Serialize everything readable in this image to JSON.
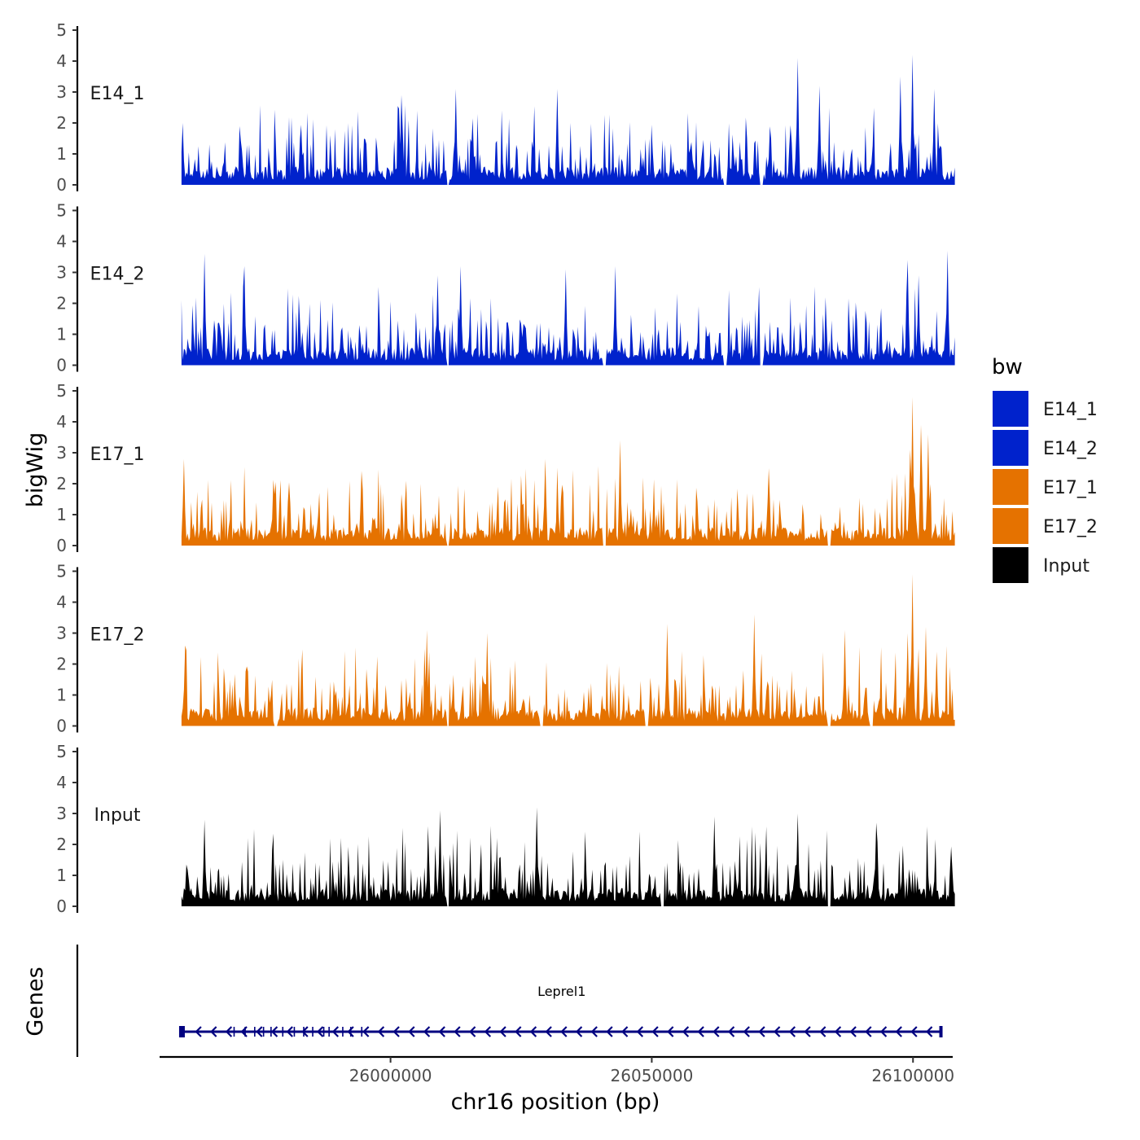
{
  "chart_data": {
    "type": "area",
    "ylabel": "bigWig",
    "xlabel": "chr16 position (bp)",
    "gene_panel_label": "Genes",
    "xlim": [
      25955800,
      26107600
    ],
    "data_range": [
      25960000,
      26108000
    ],
    "x_ticks": [
      26000000,
      26050000,
      26100000
    ],
    "x_tick_labels": [
      "26000000",
      "26050000",
      "26100000"
    ],
    "ylim": [
      0,
      5
    ],
    "y_ticks": [
      0,
      1,
      2,
      3,
      4,
      5
    ],
    "y_tick_labels": [
      "0",
      "1",
      "2",
      "3",
      "4",
      "5"
    ],
    "series": [
      {
        "name": "E14_1",
        "label": "E14_1",
        "color": "#0022cc",
        "peaks": [
          [
            25960200,
            2.0
          ],
          [
            26002000,
            2.9
          ],
          [
            26012500,
            3.1
          ],
          [
            26032000,
            3.1
          ],
          [
            26078000,
            4.1
          ],
          [
            26082000,
            3.2
          ],
          [
            26097500,
            3.5
          ],
          [
            26100000,
            4.2
          ],
          [
            26104000,
            3.1
          ]
        ],
        "gaps": [
          26011000,
          26071000,
          26064000
        ]
      },
      {
        "name": "E14_2",
        "label": "E14_2",
        "color": "#0022cc",
        "peaks": [
          [
            25964500,
            3.6
          ],
          [
            25972000,
            3.2
          ],
          [
            26009000,
            2.9
          ],
          [
            26013500,
            3.2
          ],
          [
            26033500,
            3.1
          ],
          [
            26043000,
            3.2
          ],
          [
            26099000,
            3.4
          ],
          [
            26101000,
            2.9
          ],
          [
            26106500,
            3.7
          ]
        ],
        "gaps": [
          26011000,
          26041000,
          26064000,
          26071000
        ]
      },
      {
        "name": "E17_1",
        "label": "E17_1",
        "color": "#e57200",
        "peaks": [
          [
            25960500,
            2.8
          ],
          [
            26029500,
            2.8
          ],
          [
            26044000,
            3.4
          ],
          [
            26072500,
            2.5
          ],
          [
            26099500,
            3.1
          ],
          [
            26100000,
            4.8
          ],
          [
            26101500,
            3.9
          ],
          [
            26103000,
            3.6
          ]
        ],
        "gaps": [
          26011000,
          26041000,
          26084000
        ]
      },
      {
        "name": "E17_2",
        "label": "E17_2",
        "color": "#e57200",
        "peaks": [
          [
            25960800,
            2.6
          ],
          [
            26007000,
            3.1
          ],
          [
            26018500,
            3.0
          ],
          [
            26053000,
            3.3
          ],
          [
            26069500,
            3.6
          ],
          [
            26087000,
            3.1
          ],
          [
            26099000,
            3.0
          ],
          [
            26100000,
            4.9
          ],
          [
            26102500,
            3.2
          ],
          [
            26104500,
            2.4
          ]
        ],
        "gaps": [
          25978000,
          26011000,
          26029000,
          26049000,
          26084000,
          26092000
        ]
      },
      {
        "name": "Input",
        "label": "Input",
        "color": "#000000",
        "peaks": [
          [
            25964300,
            2.8
          ],
          [
            26009500,
            3.1
          ],
          [
            26028000,
            3.2
          ],
          [
            26062000,
            2.9
          ],
          [
            26078000,
            3.0
          ],
          [
            26093000,
            2.7
          ]
        ],
        "gaps": [
          26011000,
          26052000,
          26084000
        ]
      }
    ],
    "legend": {
      "title": "bw",
      "entries": [
        {
          "label": "E14_1",
          "color": "#0022cc"
        },
        {
          "label": "E14_2",
          "color": "#0022cc"
        },
        {
          "label": "E17_1",
          "color": "#e57200"
        },
        {
          "label": "E17_2",
          "color": "#e57200"
        },
        {
          "label": "Input",
          "color": "#000000"
        }
      ]
    },
    "gene": {
      "name": "Leprel1",
      "start": 25960000,
      "end": 26105500,
      "strand": "-",
      "color": "#000080"
    }
  }
}
